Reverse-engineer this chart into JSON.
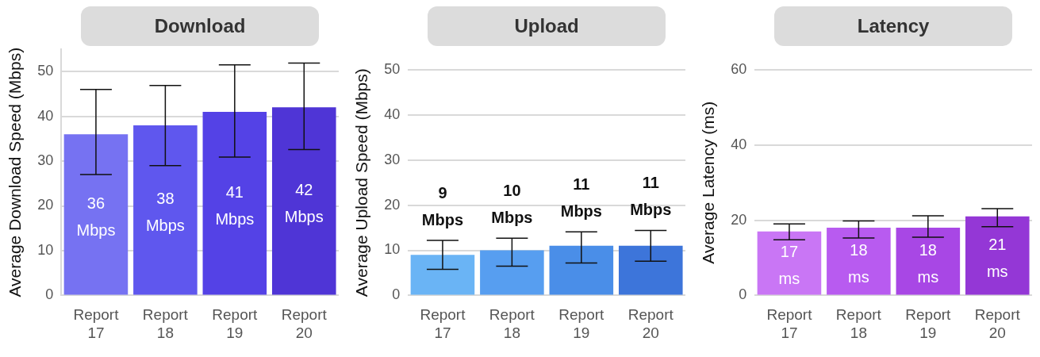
{
  "chart_data": [
    {
      "type": "bar",
      "title": "Download",
      "ylabel": "Average Download Speed (Mbps)",
      "categories": [
        "Report 17",
        "Report 18",
        "Report 19",
        "Report 20"
      ],
      "values": [
        36,
        38,
        41,
        42
      ],
      "colors": [
        "#7672f2",
        "#5f57ee",
        "#5442e6",
        "#4f35d6"
      ],
      "errors": [
        [
          27,
          46
        ],
        [
          29,
          46.9
        ],
        [
          30.9,
          51.5
        ],
        [
          32.6,
          51.9
        ]
      ],
      "value_labels": [
        "36 Mbps",
        "38 Mbps",
        "41 Mbps",
        "42 Mbps"
      ],
      "ylim": [
        0,
        55
      ],
      "yticks": [
        0,
        10,
        20,
        30,
        40,
        50
      ],
      "grid": "y"
    },
    {
      "type": "bar",
      "title": "Upload",
      "ylabel": "Average Upload Speed (Mbps)",
      "categories": [
        "Report 17",
        "Report 18",
        "Report 19",
        "Report 20"
      ],
      "values": [
        9,
        10,
        11,
        11
      ],
      "colors": [
        "#6ab4f5",
        "#579ef0",
        "#4a8ee8",
        "#3d75da"
      ],
      "errors": [
        [
          5.8,
          12.2
        ],
        [
          6.5,
          12.7
        ],
        [
          7.2,
          14.1
        ],
        [
          7.6,
          14.4
        ]
      ],
      "value_labels": [
        "9 Mbps",
        "10 Mbps",
        "11 Mbps",
        "11 Mbps"
      ],
      "ylim": [
        0,
        50
      ],
      "yticks": [
        0,
        10,
        20,
        30,
        40,
        50
      ],
      "grid": "y"
    },
    {
      "type": "bar",
      "title": "Latency",
      "ylabel": "Average Latency (ms)",
      "categories": [
        "Report 17",
        "Report 18",
        "Report 19",
        "Report 20"
      ],
      "values": [
        17,
        18,
        18,
        21
      ],
      "colors": [
        "#c976f5",
        "#b85bf0",
        "#a847e5",
        "#9437d6"
      ],
      "errors": [
        [
          14.8,
          19
        ],
        [
          15.3,
          19.8
        ],
        [
          15.5,
          21.2
        ],
        [
          18.3,
          23.1
        ]
      ],
      "value_labels": [
        "17 ms",
        "18 ms",
        "18 ms",
        "21 ms"
      ],
      "ylim": [
        0,
        60
      ],
      "yticks": [
        0,
        20,
        40,
        60
      ],
      "grid": "y"
    }
  ]
}
